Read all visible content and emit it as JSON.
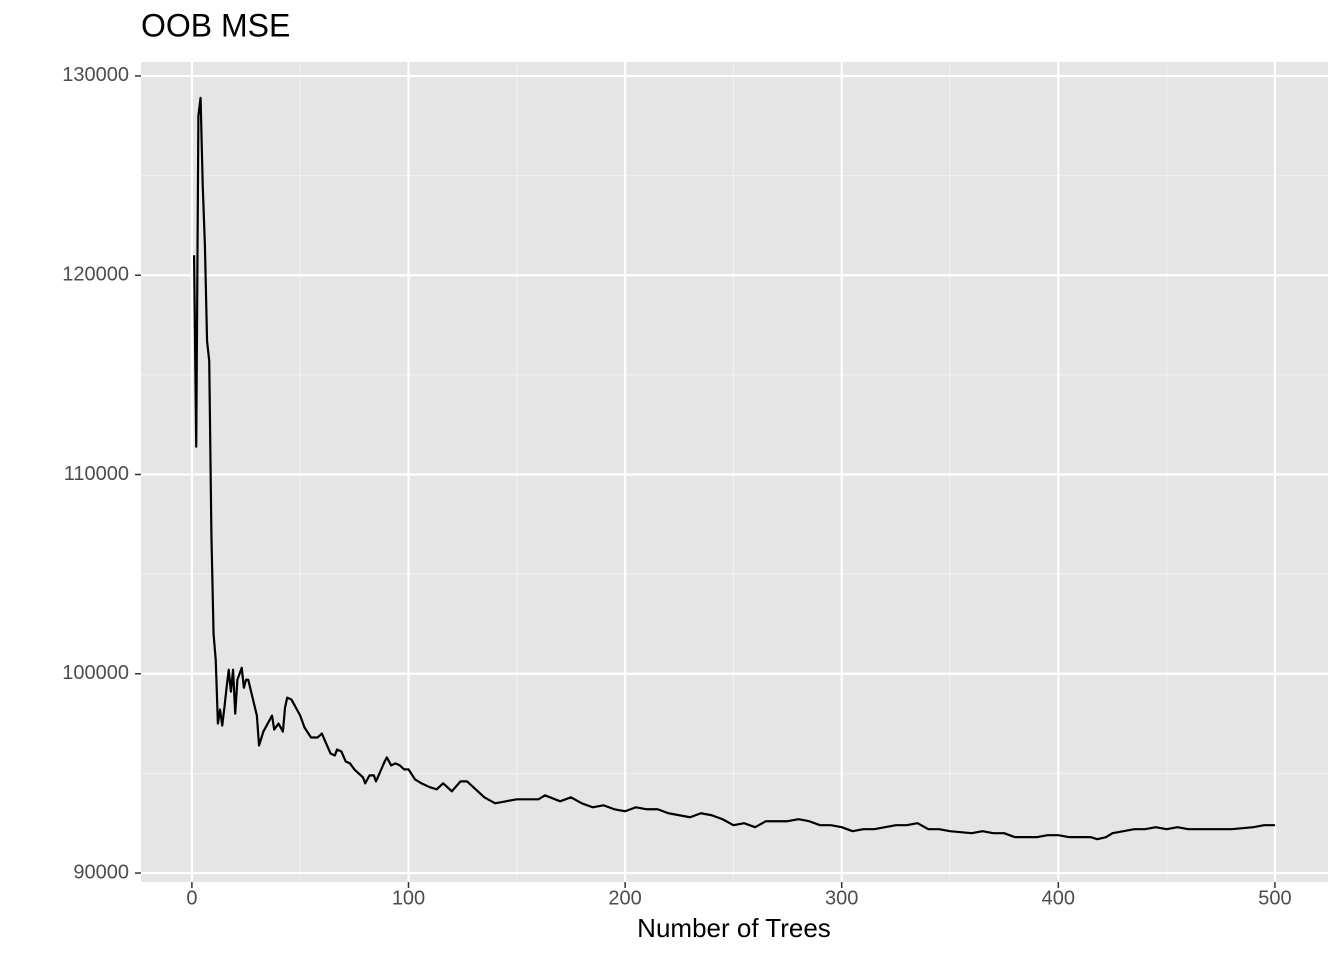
{
  "chart_data": {
    "type": "line",
    "title": "OOB MSE",
    "x_label": "Number of Trees",
    "x": [
      1,
      2,
      3,
      4,
      5,
      6,
      7,
      8,
      9,
      10,
      11,
      12,
      13,
      14,
      15,
      16,
      17,
      18,
      19,
      20,
      21,
      22,
      23,
      24,
      25,
      26,
      28,
      30,
      31,
      33,
      35,
      37,
      38,
      40,
      42,
      43,
      44,
      46,
      48,
      50,
      52,
      55,
      58,
      60,
      62,
      64,
      66,
      67,
      69,
      71,
      73,
      75,
      77,
      79,
      80,
      82,
      84,
      85,
      87,
      89,
      90,
      92,
      94,
      96,
      98,
      100,
      103,
      106,
      110,
      113,
      116,
      120,
      124,
      127,
      130,
      135,
      140,
      145,
      150,
      155,
      160,
      163,
      170,
      175,
      180,
      185,
      190,
      195,
      200,
      205,
      210,
      215,
      220,
      225,
      230,
      235,
      240,
      245,
      250,
      255,
      260,
      265,
      270,
      275,
      280,
      285,
      290,
      295,
      300,
      305,
      310,
      315,
      320,
      325,
      330,
      335,
      340,
      345,
      350,
      360,
      365,
      370,
      375,
      380,
      390,
      395,
      400,
      405,
      410,
      415,
      418,
      422,
      425,
      430,
      435,
      440,
      445,
      450,
      455,
      460,
      470,
      480,
      490,
      495,
      500
    ],
    "series": [
      {
        "color": "#000000",
        "values": [
          121000,
          111400,
          128000,
          128900,
          124500,
          121500,
          116700,
          115700,
          107000,
          102000,
          100700,
          97500,
          98200,
          97400,
          98300,
          99300,
          100200,
          99100,
          100200,
          98000,
          99700,
          100000,
          100300,
          99300,
          99700,
          99700,
          98800,
          97900,
          96400,
          97100,
          97500,
          97900,
          97200,
          97500,
          97100,
          98300,
          98800,
          98700,
          98300,
          97900,
          97300,
          96800,
          96800,
          97000,
          96500,
          96000,
          95900,
          96200,
          96100,
          95600,
          95500,
          95200,
          95000,
          94800,
          94500,
          94900,
          94900,
          94600,
          95100,
          95600,
          95800,
          95400,
          95500,
          95400,
          95200,
          95200,
          94700,
          94500,
          94300,
          94200,
          94500,
          94100,
          94600,
          94600,
          94300,
          93800,
          93500,
          93600,
          93700,
          93700,
          93700,
          93900,
          93600,
          93800,
          93500,
          93300,
          93400,
          93200,
          93100,
          93300,
          93200,
          93200,
          93000,
          92900,
          92800,
          93000,
          92900,
          92700,
          92400,
          92500,
          92300,
          92600,
          92600,
          92600,
          92700,
          92600,
          92400,
          92400,
          92300,
          92100,
          92200,
          92200,
          92300,
          92400,
          92400,
          92500,
          92200,
          92200,
          92100,
          92000,
          92100,
          92000,
          92000,
          91800,
          91800,
          91900,
          91900,
          91800,
          91800,
          91800,
          91700,
          91800,
          92000,
          92100,
          92200,
          92200,
          92300,
          92200,
          92300,
          92200,
          92200,
          92200,
          92300,
          92400,
          92400
        ]
      }
    ],
    "xlim": [
      -23.5,
      524.5
    ],
    "ylim": [
      89550,
      130700
    ],
    "xticks": [
      0,
      100,
      200,
      300,
      400,
      500
    ],
    "yticks": [
      90000,
      100000,
      110000,
      120000,
      130000
    ],
    "grid": true
  }
}
